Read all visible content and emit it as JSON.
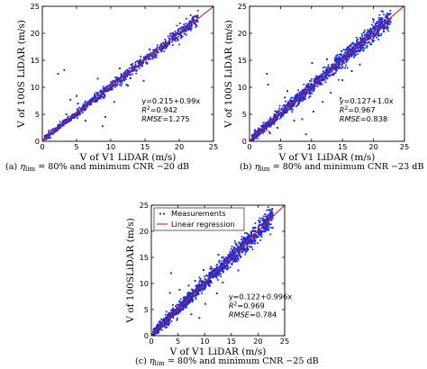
{
  "figure": {
    "legend": {
      "measurements": "Measurements",
      "regression": "Linear regression"
    },
    "colors": {
      "points": "#1f2bd6",
      "line": "#d61a1a",
      "axis": "#000000"
    }
  },
  "chart_data": [
    {
      "id": "a",
      "type": "scatter",
      "xlabel": "V of V1 LiDAR (m/s)",
      "ylabel": "V of 100S LiDAR (m/s)",
      "xlim": [
        0,
        25
      ],
      "ylim": [
        0,
        25
      ],
      "xticks": [
        "0",
        "5",
        "10",
        "15",
        "20",
        "25"
      ],
      "yticks": [
        "0",
        "5",
        "10",
        "15",
        "20",
        "25"
      ],
      "grid": false,
      "legend": "none",
      "series": [
        {
          "name": "Measurements",
          "kind": "points",
          "density": 900,
          "spread": 0.45,
          "outliers": [
            [
              22.5,
              23
            ],
            [
              22.6,
              22.5
            ],
            [
              2.3,
              12.5
            ],
            [
              3.2,
              13.2
            ],
            [
              8.8,
              2.8
            ],
            [
              9.2,
              4.5
            ],
            [
              10.5,
              7.3
            ],
            [
              12.5,
              10.3
            ],
            [
              5.0,
              8.4
            ],
            [
              5.2,
              7.0
            ],
            [
              6.3,
              3.8
            ],
            [
              11.3,
              13.5
            ],
            [
              12.3,
              10.5
            ],
            [
              3.5,
              5.0
            ],
            [
              4.1,
              7.7
            ],
            [
              14.8,
              11.2
            ],
            [
              8.1,
              11.6
            ]
          ]
        },
        {
          "name": "Linear regression",
          "kind": "line",
          "intercept": 0.215,
          "slope": 0.99
        }
      ],
      "annotation": {
        "line1": "y=0.215+0.99x",
        "r2_value": "=0.942",
        "rmse_value": "=1.275"
      },
      "caption": {
        "label": "(a)",
        "eta": "η",
        "sub": "lim",
        "rest": "= 80%  and minimum CNR −20 dB"
      }
    },
    {
      "id": "b",
      "type": "scatter",
      "xlabel": "V of V1 LiDAR (m/s)",
      "ylabel": "V of 100S LiDAR (m/s)",
      "xlim": [
        0,
        25
      ],
      "ylim": [
        0,
        25
      ],
      "xticks": [
        "0",
        "5",
        "10",
        "15",
        "20",
        "25"
      ],
      "yticks": [
        "0",
        "5",
        "10",
        "15",
        "20",
        "25"
      ],
      "grid": false,
      "legend": "none",
      "series": [
        {
          "name": "Measurements",
          "kind": "points",
          "density": 1400,
          "spread": 0.6,
          "outliers": [
            [
              2.8,
              12.5
            ],
            [
              3.0,
              10.5
            ],
            [
              4.5,
              2.5
            ],
            [
              7.2,
              3.8
            ],
            [
              8.5,
              4.1
            ],
            [
              9.1,
              1.3
            ],
            [
              10.3,
              5.5
            ],
            [
              11.8,
              7.3
            ],
            [
              13.1,
              9.0
            ],
            [
              14.7,
              8.0
            ],
            [
              6.1,
              9.3
            ],
            [
              5.7,
              8.1
            ],
            [
              12.5,
              15.2
            ],
            [
              16.5,
              13.0
            ],
            [
              17.8,
              14.2
            ],
            [
              18.4,
              16.8
            ],
            [
              19.5,
              18.0
            ],
            [
              15.0,
              11.3
            ],
            [
              13.5,
              12.3
            ],
            [
              3.3,
              1.5
            ],
            [
              10.1,
              14.5
            ],
            [
              20.3,
              21.2
            ]
          ]
        },
        {
          "name": "Linear regression",
          "kind": "line",
          "intercept": 0.127,
          "slope": 1.0
        }
      ],
      "annotation": {
        "line1": "y=0.127+1.0x",
        "r2_value": "=0.967",
        "rmse_value": "=0.838"
      },
      "caption": {
        "label": "(b)",
        "eta": "η",
        "sub": "lim",
        "rest": "= 80%  and minimum CNR −23 dB"
      }
    },
    {
      "id": "c",
      "type": "scatter",
      "xlabel": "V of V1 LiDAR (m/s)",
      "ylabel": "V of 100SLiDAR (m/s)",
      "xlim": [
        0,
        25
      ],
      "ylim": [
        0,
        25
      ],
      "xticks": [
        "0",
        "5",
        "10",
        "15",
        "20",
        "25"
      ],
      "yticks": [
        "0",
        "5",
        "10",
        "15",
        "20",
        "25"
      ],
      "grid": false,
      "legend": "top-left",
      "series": [
        {
          "name": "Measurements",
          "kind": "points",
          "density": 1500,
          "spread": 0.65,
          "outliers": [
            [
              3.7,
              12.0
            ],
            [
              3.5,
              8.2
            ],
            [
              4.8,
              3.0
            ],
            [
              6.1,
              6.8
            ],
            [
              7.5,
              4.1
            ],
            [
              9.0,
              3.4
            ],
            [
              10.1,
              6.1
            ],
            [
              12.3,
              8.1
            ],
            [
              13.4,
              10.2
            ],
            [
              8.2,
              10.5
            ],
            [
              9.8,
              12.6
            ],
            [
              12.6,
              15.5
            ],
            [
              14.2,
              12.7
            ],
            [
              16.3,
              12.5
            ],
            [
              15.8,
              17.7
            ],
            [
              11.2,
              13.2
            ],
            [
              7.0,
              9.6
            ],
            [
              5.3,
              8.8
            ]
          ]
        },
        {
          "name": "Linear regression",
          "kind": "line",
          "intercept": 0.122,
          "slope": 0.996
        }
      ],
      "annotation": {
        "line1": "y=0.122+0.996x",
        "r2_value": "=0.969",
        "rmse_value": "=0.784"
      },
      "caption": {
        "label": "(c)",
        "eta": "η",
        "sub": "lim",
        "rest": "= 80%  and minimum CNR −25 dB"
      }
    }
  ]
}
